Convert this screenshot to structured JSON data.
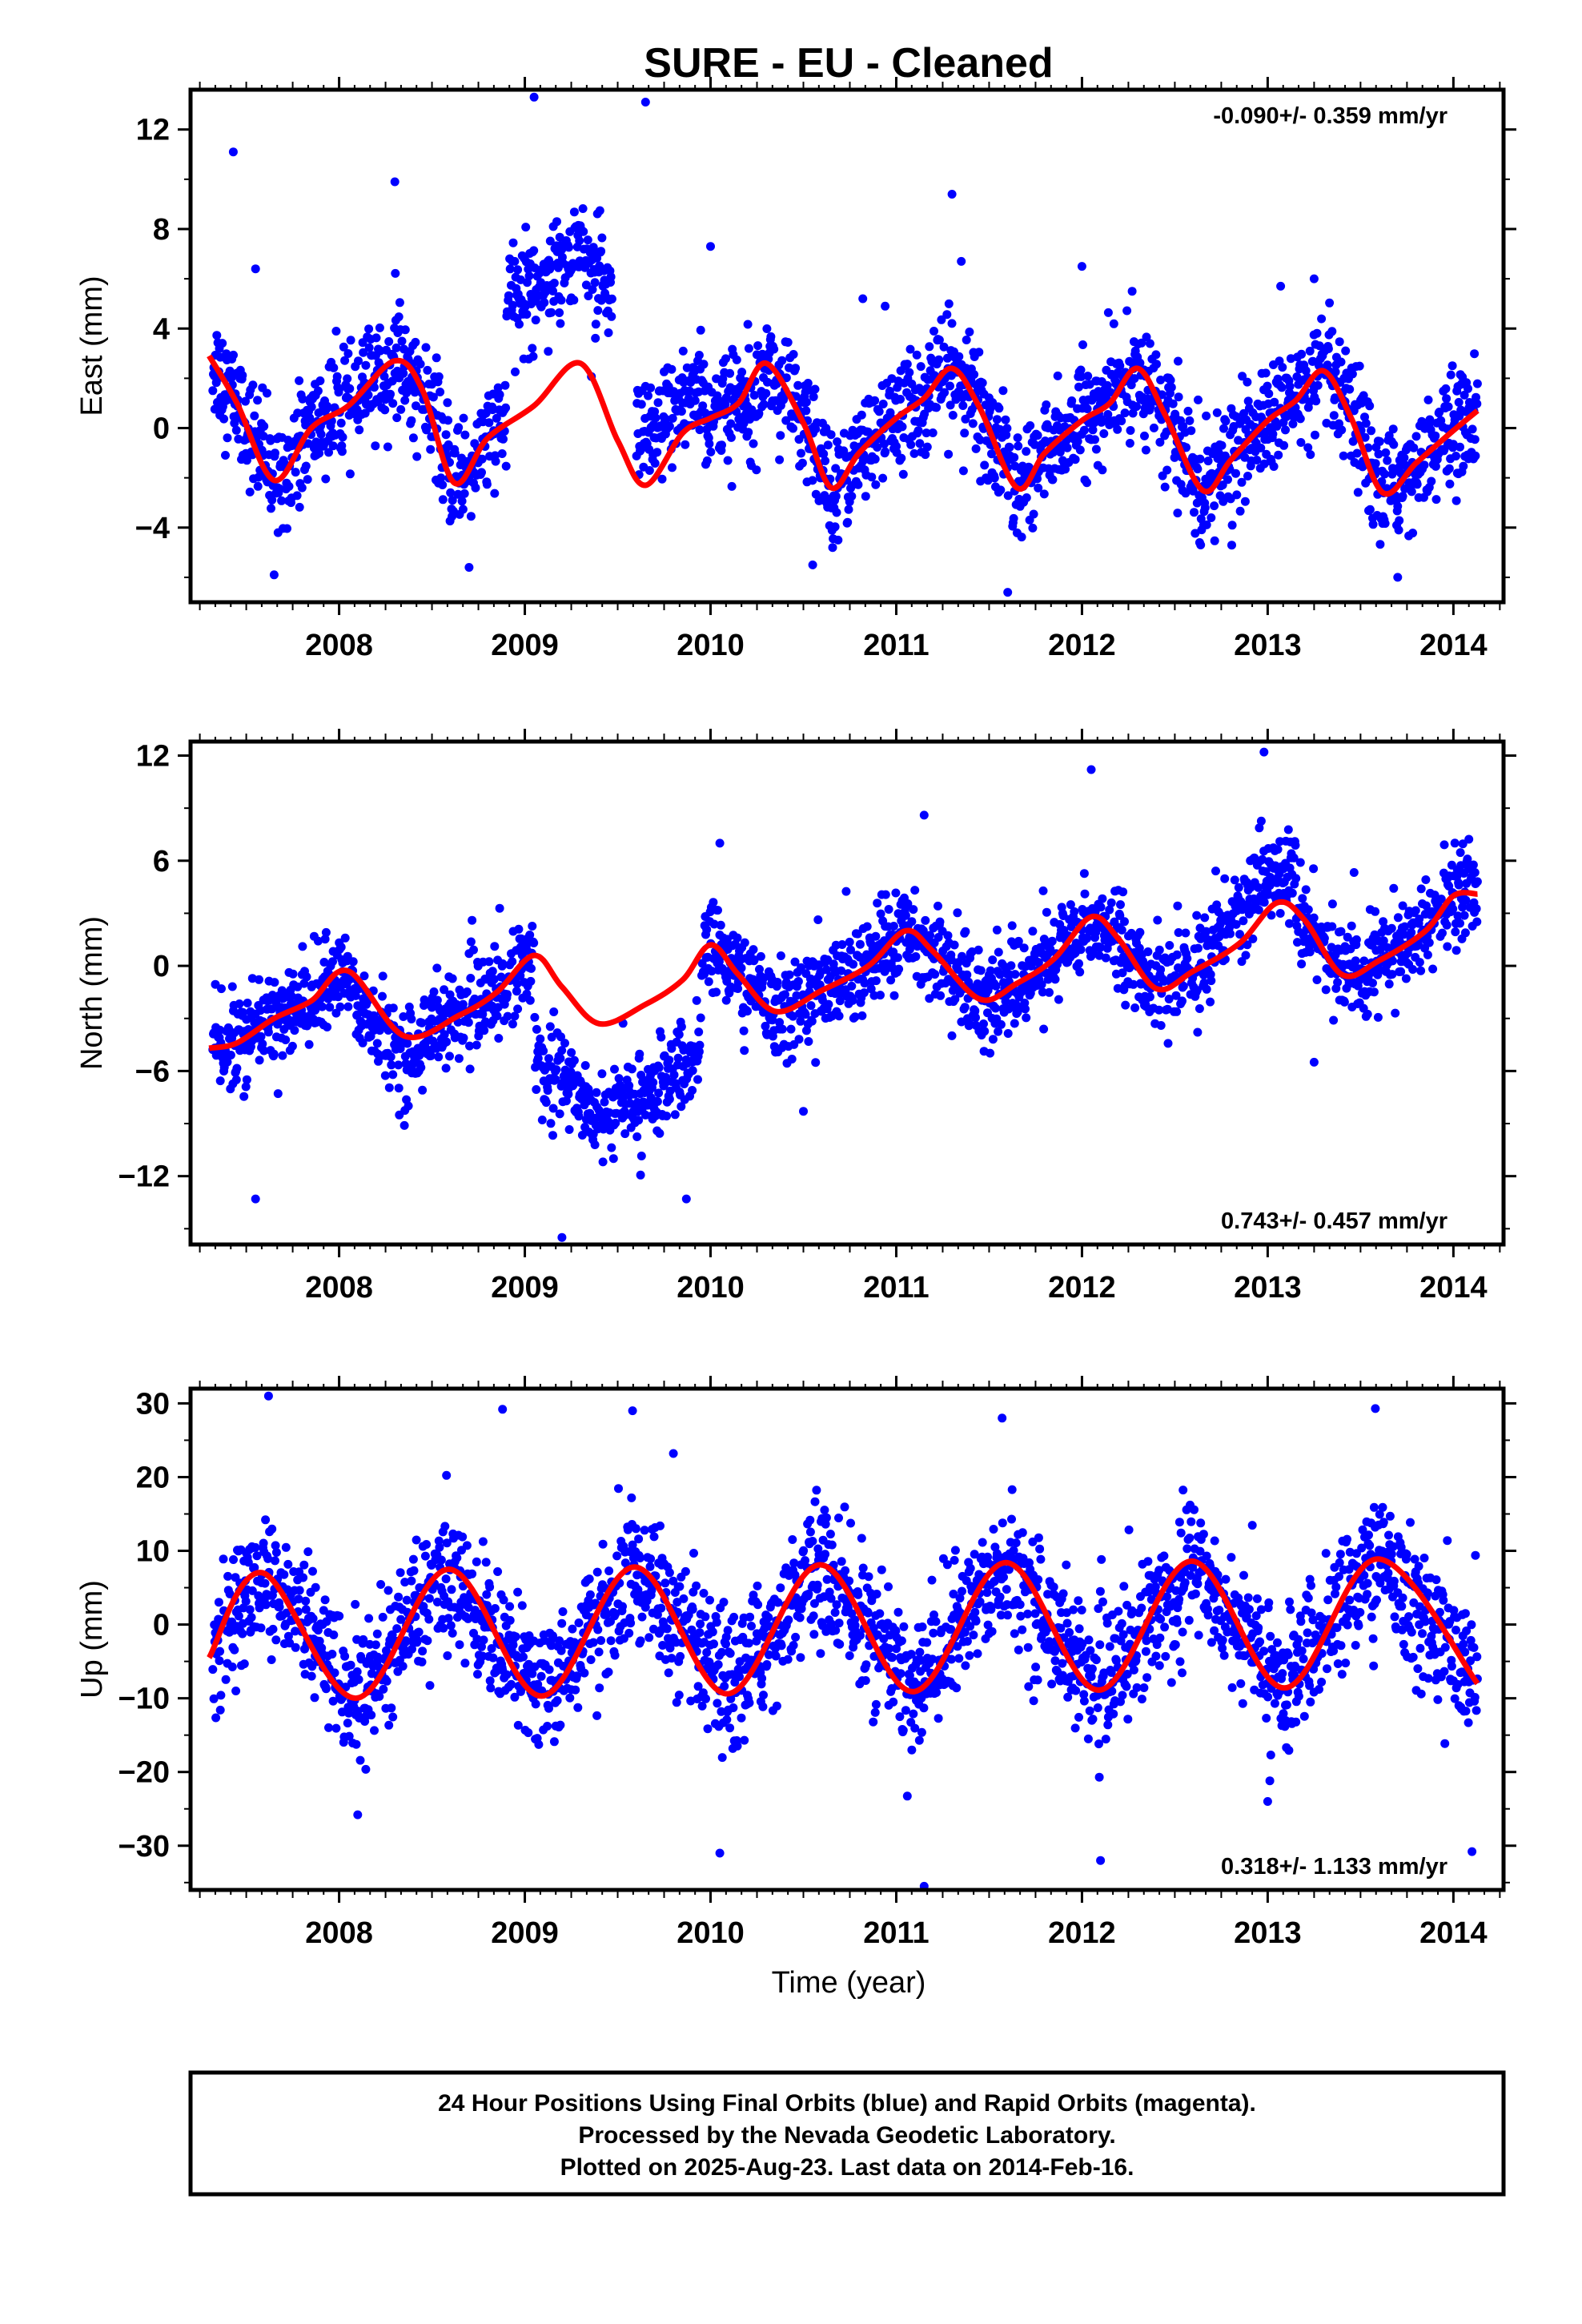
{
  "title": "SURE  - EU - Cleaned",
  "footer": {
    "lines": [
      "24 Hour Positions Using Final Orbits (blue) and Rapid Orbits (magenta).",
      "Processed by the Nevada Geodetic Laboratory.",
      "Plotted on 2025-Aug-23. Last data on 2014-Feb-16."
    ]
  },
  "colors": {
    "points": "#0000ff",
    "model": "#ff0000",
    "axes": "#000000"
  },
  "chart_data": [
    {
      "type": "scatter",
      "name": "east",
      "ylabel": "East (mm)",
      "xlabel": "",
      "xlim": [
        2007.2,
        2014.27
      ],
      "ylim": [
        -7,
        13.6
      ],
      "yticks": [
        -4,
        0,
        4,
        8,
        12
      ],
      "xticks": [
        2008,
        2009,
        2010,
        2011,
        2012,
        2013,
        2014
      ],
      "rate": "-0.090+/- 0.359 mm/yr",
      "rate_position": "top-right",
      "model": {
        "x": [
          2007.3,
          2007.45,
          2007.65,
          2007.85,
          2008.05,
          2008.3,
          2008.45,
          2008.62,
          2008.8,
          2009.05,
          2009.3,
          2009.5,
          2009.65,
          2009.85,
          2010.0,
          2010.15,
          2010.3,
          2010.5,
          2010.65,
          2010.8,
          2011.0,
          2011.15,
          2011.3,
          2011.45,
          2011.65,
          2011.8,
          2012.0,
          2012.15,
          2012.3,
          2012.45,
          2012.65,
          2012.8,
          2013.0,
          2013.15,
          2013.3,
          2013.45,
          2013.62,
          2013.8,
          2014.0,
          2014.13
        ],
        "y": [
          2.9,
          1.0,
          -2.1,
          0.0,
          0.9,
          2.7,
          1.5,
          -2.2,
          -0.4,
          0.9,
          2.6,
          -0.5,
          -2.3,
          -0.2,
          0.4,
          1.0,
          2.6,
          0.2,
          -2.4,
          -1.0,
          0.4,
          1.2,
          2.4,
          0.8,
          -2.4,
          -1.0,
          0.3,
          1.0,
          2.4,
          0.5,
          -2.5,
          -1.3,
          0.3,
          1.1,
          2.3,
          0.4,
          -2.6,
          -1.4,
          -0.1,
          0.7
        ]
      },
      "scatter": {
        "start": 2007.32,
        "end": 2014.13,
        "spread": 1.1,
        "gaps": [
          [
            2009.47,
            2009.6
          ]
        ],
        "offsets": [
          [
            2008.9,
            2009.6,
            4.8
          ],
          [
            2009.6,
            2009.97,
            1.4
          ]
        ],
        "outliers": [
          [
            2007.43,
            11.1
          ],
          [
            2007.55,
            6.4
          ],
          [
            2008.3,
            9.9
          ],
          [
            2009.05,
            13.3
          ],
          [
            2009.65,
            13.1
          ],
          [
            2010.0,
            7.3
          ],
          [
            2010.82,
            5.2
          ],
          [
            2010.94,
            4.9
          ],
          [
            2011.3,
            9.4
          ],
          [
            2011.35,
            6.7
          ],
          [
            2012.0,
            6.5
          ],
          [
            2012.27,
            5.5
          ],
          [
            2013.07,
            5.7
          ],
          [
            2013.25,
            6.0
          ],
          [
            2007.65,
            -5.9
          ],
          [
            2008.7,
            -5.6
          ],
          [
            2011.6,
            -6.6
          ],
          [
            2013.7,
            -6.0
          ],
          [
            2010.55,
            -5.5
          ]
        ]
      }
    },
    {
      "type": "scatter",
      "name": "north",
      "ylabel": "North (mm)",
      "xlabel": "",
      "xlim": [
        2007.2,
        2014.27
      ],
      "ylim": [
        -15.9,
        12.8
      ],
      "yticks": [
        -12,
        -6,
        0,
        6,
        12
      ],
      "xticks": [
        2008,
        2009,
        2010,
        2011,
        2012,
        2013,
        2014
      ],
      "rate": "0.743+/- 0.457 mm/yr",
      "rate_position": "bottom-right",
      "model": {
        "x": [
          2007.3,
          2007.45,
          2007.65,
          2007.85,
          2008.05,
          2008.35,
          2008.65,
          2008.85,
          2009.05,
          2009.2,
          2009.4,
          2009.65,
          2009.85,
          2010.0,
          2010.15,
          2010.35,
          2010.6,
          2010.85,
          2011.05,
          2011.2,
          2011.45,
          2011.65,
          2011.85,
          2012.05,
          2012.2,
          2012.4,
          2012.6,
          2012.85,
          2013.05,
          2013.2,
          2013.4,
          2013.6,
          2013.85,
          2014.0,
          2014.13
        ],
        "y": [
          -4.7,
          -4.4,
          -3.0,
          -2.0,
          -0.3,
          -4.0,
          -2.8,
          -1.5,
          0.6,
          -1.2,
          -3.3,
          -2.2,
          -0.8,
          1.2,
          -0.5,
          -2.6,
          -1.4,
          0.0,
          2.0,
          0.8,
          -1.9,
          -1.0,
          0.4,
          2.8,
          1.5,
          -1.3,
          -0.3,
          1.3,
          3.6,
          2.6,
          -0.5,
          0.3,
          2.0,
          4.0,
          4.1
        ]
      },
      "scatter": {
        "start": 2007.32,
        "end": 2014.13,
        "spread": 1.3,
        "gaps": [],
        "offsets": [
          [
            2008.05,
            2008.45,
            -1.2
          ],
          [
            2009.05,
            2009.95,
            -5.2
          ],
          [
            2012.7,
            2013.15,
            2.0
          ]
        ],
        "outliers": [
          [
            2007.55,
            -13.3
          ],
          [
            2009.2,
            -15.5
          ],
          [
            2009.87,
            -13.3
          ],
          [
            2010.5,
            -8.3
          ],
          [
            2013.25,
            -5.5
          ],
          [
            2012.05,
            11.2
          ],
          [
            2012.98,
            12.2
          ],
          [
            2011.15,
            8.6
          ],
          [
            2010.05,
            7.0
          ]
        ]
      }
    },
    {
      "type": "scatter",
      "name": "up",
      "ylabel": "Up (mm)",
      "xlabel": "Time (year)",
      "xlim": [
        2007.2,
        2014.27
      ],
      "ylim": [
        -36,
        32
      ],
      "yticks": [
        -30,
        -20,
        -10,
        0,
        10,
        20,
        30
      ],
      "xticks": [
        2008,
        2009,
        2010,
        2011,
        2012,
        2013,
        2014
      ],
      "rate": "0.318+/- 1.133 mm/yr",
      "rate_position": "bottom-right",
      "model": {
        "x": [
          2007.3,
          2007.59,
          2008.09,
          2008.59,
          2009.09,
          2009.59,
          2010.09,
          2010.59,
          2011.09,
          2011.59,
          2012.09,
          2012.59,
          2013.09,
          2013.59,
          2014.13
        ],
        "y": [
          -4.5,
          7.0,
          -10.0,
          7.5,
          -9.7,
          7.8,
          -9.4,
          8.1,
          -9.1,
          8.4,
          -8.9,
          8.6,
          -8.6,
          8.9,
          -8.0
        ]
      },
      "scatter": {
        "start": 2007.32,
        "end": 2014.13,
        "spread": 4.5,
        "gaps": [],
        "offsets": [],
        "outliers": [
          [
            2007.62,
            31.0
          ],
          [
            2008.88,
            29.2
          ],
          [
            2009.58,
            29.0
          ],
          [
            2009.8,
            23.2
          ],
          [
            2011.57,
            28.0
          ],
          [
            2013.58,
            29.3
          ],
          [
            2008.1,
            -25.8
          ],
          [
            2010.05,
            -31.0
          ],
          [
            2011.15,
            -35.5
          ],
          [
            2012.1,
            -32.0
          ],
          [
            2014.1,
            -30.8
          ],
          [
            2013.0,
            -24.0
          ]
        ]
      }
    }
  ]
}
